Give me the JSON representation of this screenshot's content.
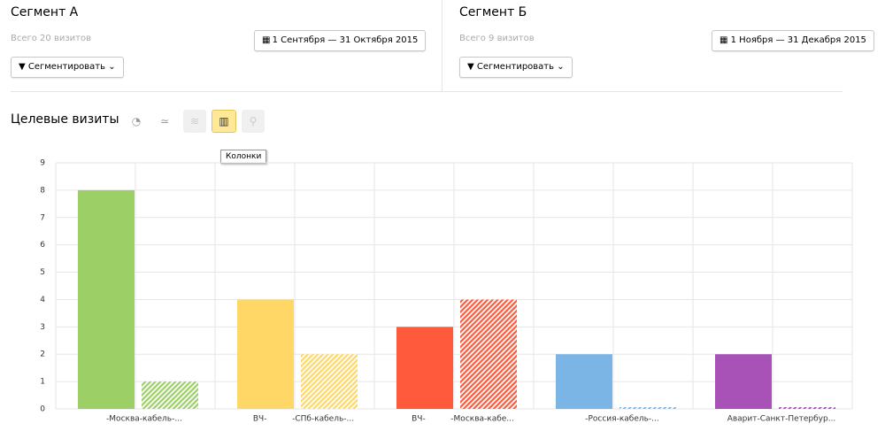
{
  "segments": [
    {
      "title": "Сегмент А",
      "visits": "Всего 20 визитов",
      "date_range": "1 Сентября — 31 Октября 2015",
      "segment_button": "Сегментировать"
    },
    {
      "title": "Сегмент Б",
      "visits": "Всего 9 визитов",
      "date_range": "1 Ноября — 31 Декабря 2015",
      "segment_button": "Сегментировать"
    }
  ],
  "tooltip": "Колонки",
  "chart_data": {
    "type": "bar",
    "title": "Целевые визиты",
    "categories": [
      "-Москва-кабель-...",
      "ВЧ-          -СПб-кабель-...",
      "ВЧ-          -Москва-кабе...",
      "-Россия-кабель-...",
      "Аварит-Санкт-Петербур..."
    ],
    "colors": [
      "#9ccf65",
      "#ffd766",
      "#ff5a3c",
      "#7ab5e6",
      "#a852b8"
    ],
    "series": [
      {
        "values": [
          8,
          4,
          3,
          2,
          2
        ]
      },
      {
        "values": [
          1,
          2,
          4,
          0,
          0
        ]
      }
    ],
    "ylim": [
      0,
      9
    ],
    "yticks": [
      0,
      1,
      2,
      3,
      4,
      5,
      6,
      7,
      8,
      9
    ],
    "grid": true
  }
}
